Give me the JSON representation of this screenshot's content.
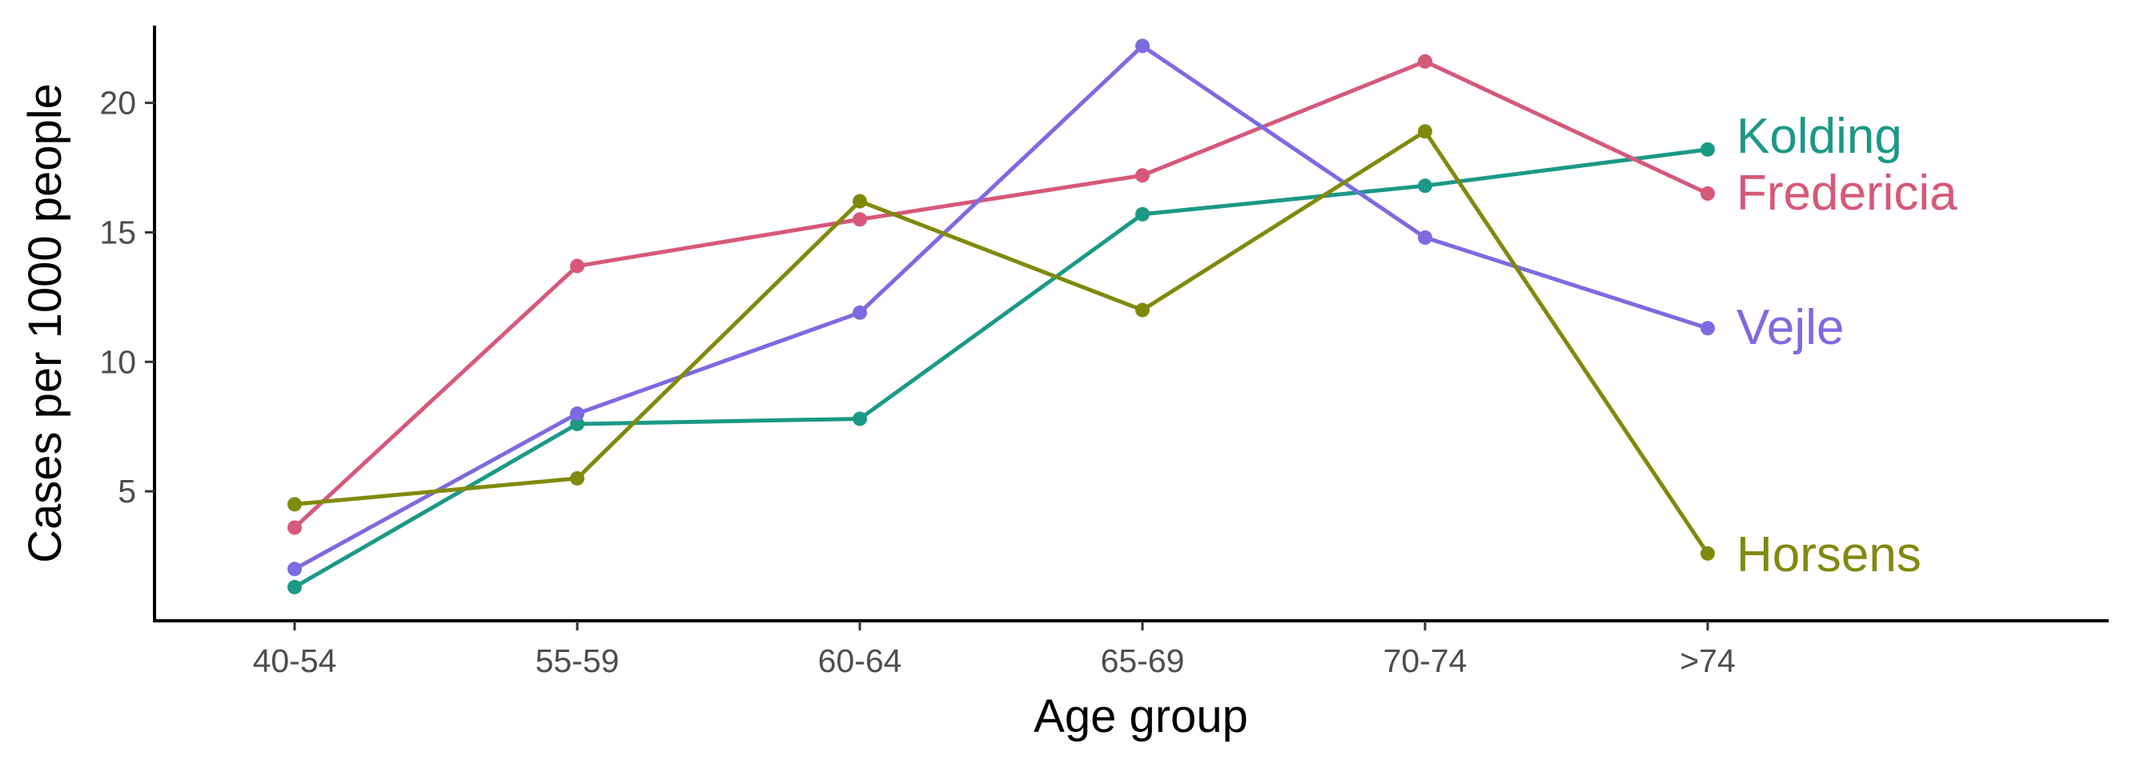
{
  "chart_data": {
    "type": "line",
    "title": "",
    "xlabel": "Age group",
    "ylabel": "Cases per 1000 people",
    "categories": [
      "40-54",
      "55-59",
      "60-64",
      "65-69",
      "70-74",
      ">74"
    ],
    "ylim": [
      0,
      22.5
    ],
    "yticks": [
      "5",
      "10",
      "15",
      "20"
    ],
    "grid": false,
    "legend": "direct labels at right end of lines",
    "series": [
      {
        "name": "Kolding",
        "color": "#1a9985",
        "values": [
          1.3,
          7.6,
          7.8,
          15.7,
          16.8,
          18.2
        ]
      },
      {
        "name": "Fredericia",
        "color": "#d6587a",
        "values": [
          3.6,
          13.7,
          15.5,
          17.2,
          21.6,
          16.5
        ]
      },
      {
        "name": "Vejle",
        "color": "#7b6be0",
        "values": [
          2.0,
          8.0,
          11.9,
          22.2,
          14.8,
          11.3
        ]
      },
      {
        "name": "Horsens",
        "color": "#7f8a0c",
        "values": [
          4.5,
          5.5,
          16.2,
          12.0,
          18.9,
          2.6
        ]
      }
    ]
  }
}
